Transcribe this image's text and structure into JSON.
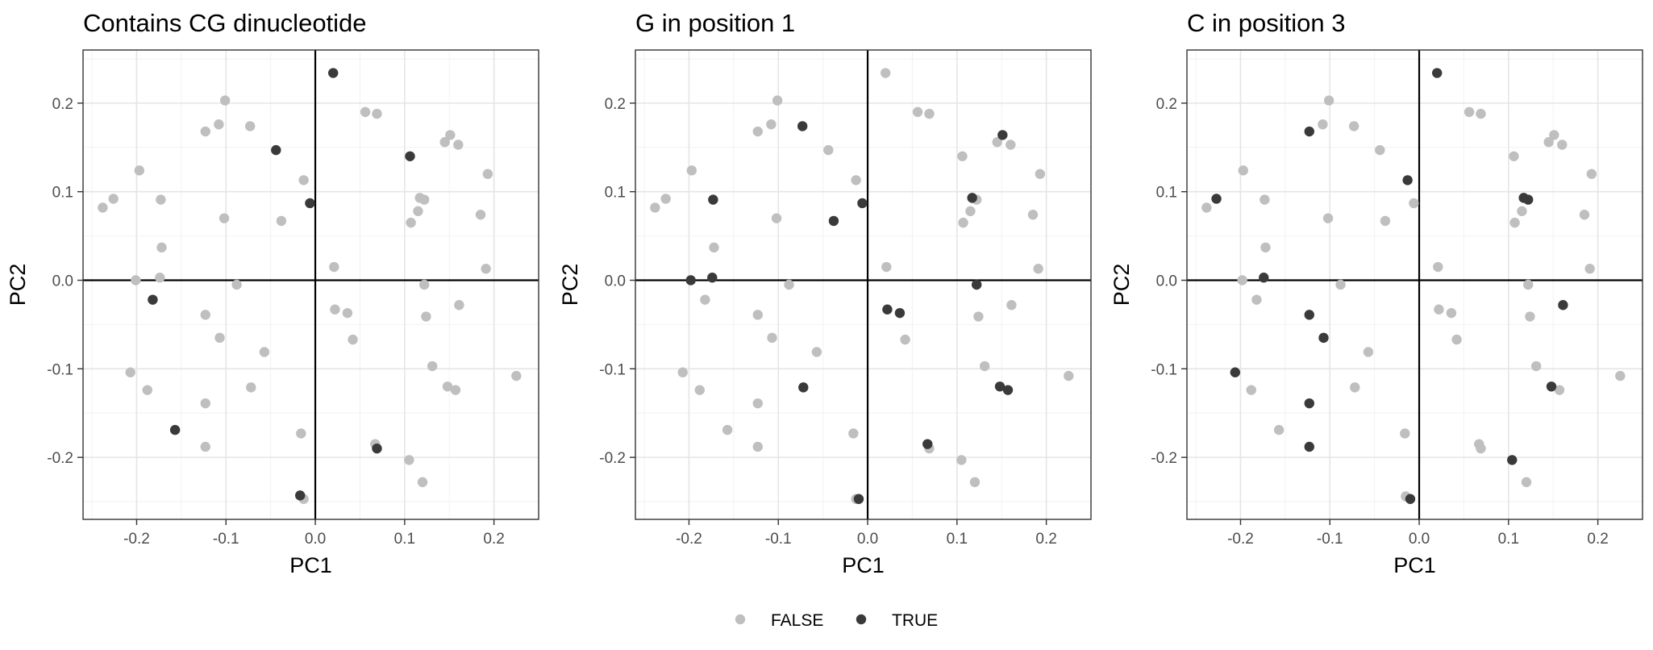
{
  "colors": {
    "FALSE": "#bfbfbf",
    "TRUE": "#3a3a3a",
    "grid_major": "#e5e5e5",
    "grid_minor": "#f2f2f2",
    "panel_border": "#333333",
    "zero_line": "#000000"
  },
  "legend": {
    "position": "bottom",
    "entries": [
      {
        "key": "FALSE",
        "label": "FALSE"
      },
      {
        "key": "TRUE",
        "label": "TRUE"
      }
    ]
  },
  "chart_data": [
    {
      "type": "scatter",
      "title": "Contains CG dinucleotide",
      "xlabel": "PC1",
      "ylabel": "PC2",
      "xlim": [
        -0.26,
        0.25
      ],
      "ylim": [
        -0.27,
        0.26
      ],
      "xticks": [
        -0.2,
        -0.1,
        0.0,
        0.1,
        0.2
      ],
      "xtick_labels": [
        "-0.2",
        "-0.1",
        "0.0",
        "0.1",
        "0.2"
      ],
      "yticks": [
        -0.2,
        -0.1,
        0.0,
        0.1,
        0.2
      ],
      "ytick_labels": [
        "-0.2",
        "-0.1",
        "0.0",
        "0.1",
        "0.2"
      ],
      "grid": true,
      "zero_lines": true,
      "points": [
        [
          -0.238,
          0.082,
          0
        ],
        [
          -0.226,
          0.092,
          0
        ],
        [
          -0.197,
          0.124,
          0
        ],
        [
          -0.173,
          0.091,
          0
        ],
        [
          -0.172,
          0.037,
          0
        ],
        [
          -0.174,
          0.003,
          0
        ],
        [
          -0.201,
          0.0,
          0
        ],
        [
          -0.182,
          -0.022,
          1
        ],
        [
          -0.207,
          -0.104,
          0
        ],
        [
          -0.188,
          -0.124,
          0
        ],
        [
          -0.157,
          -0.169,
          1
        ],
        [
          -0.123,
          -0.188,
          0
        ],
        [
          -0.123,
          -0.139,
          0
        ],
        [
          -0.123,
          -0.039,
          0
        ],
        [
          -0.107,
          -0.065,
          0
        ],
        [
          -0.088,
          -0.005,
          0
        ],
        [
          -0.057,
          -0.081,
          0
        ],
        [
          -0.072,
          -0.121,
          0
        ],
        [
          -0.102,
          0.07,
          0
        ],
        [
          -0.123,
          0.168,
          0
        ],
        [
          -0.108,
          0.176,
          0
        ],
        [
          -0.101,
          0.203,
          0
        ],
        [
          -0.073,
          0.174,
          0
        ],
        [
          -0.044,
          0.147,
          1
        ],
        [
          -0.038,
          0.067,
          0
        ],
        [
          -0.013,
          0.113,
          0
        ],
        [
          -0.006,
          0.087,
          1
        ],
        [
          -0.016,
          -0.173,
          0
        ],
        [
          -0.013,
          -0.247,
          0
        ],
        [
          -0.017,
          -0.243,
          1
        ],
        [
          0.02,
          0.234,
          1
        ],
        [
          0.056,
          0.19,
          0
        ],
        [
          0.069,
          0.188,
          0
        ],
        [
          0.106,
          0.14,
          1
        ],
        [
          0.145,
          0.156,
          0
        ],
        [
          0.151,
          0.164,
          0
        ],
        [
          0.16,
          0.153,
          0
        ],
        [
          0.193,
          0.12,
          0
        ],
        [
          0.185,
          0.074,
          0
        ],
        [
          0.191,
          0.013,
          0
        ],
        [
          0.117,
          0.093,
          0
        ],
        [
          0.122,
          0.091,
          0
        ],
        [
          0.115,
          0.078,
          0
        ],
        [
          0.107,
          0.065,
          0
        ],
        [
          0.021,
          0.015,
          0
        ],
        [
          0.022,
          -0.033,
          0
        ],
        [
          0.036,
          -0.037,
          0
        ],
        [
          0.042,
          -0.067,
          0
        ],
        [
          0.122,
          -0.005,
          0
        ],
        [
          0.124,
          -0.041,
          0
        ],
        [
          0.161,
          -0.028,
          0
        ],
        [
          0.131,
          -0.097,
          0
        ],
        [
          0.148,
          -0.12,
          0
        ],
        [
          0.157,
          -0.124,
          0
        ],
        [
          0.225,
          -0.108,
          0
        ],
        [
          0.067,
          -0.185,
          0
        ],
        [
          0.069,
          -0.19,
          1
        ],
        [
          0.105,
          -0.203,
          0
        ],
        [
          0.12,
          -0.228,
          0
        ]
      ]
    },
    {
      "type": "scatter",
      "title": "G in position 1",
      "xlabel": "PC1",
      "ylabel": "PC2",
      "xlim": [
        -0.26,
        0.25
      ],
      "ylim": [
        -0.27,
        0.26
      ],
      "xticks": [
        -0.2,
        -0.1,
        0.0,
        0.1,
        0.2
      ],
      "xtick_labels": [
        "-0.2",
        "-0.1",
        "0.0",
        "0.1",
        "0.2"
      ],
      "yticks": [
        -0.2,
        -0.1,
        0.0,
        0.1,
        0.2
      ],
      "ytick_labels": [
        "-0.2",
        "-0.1",
        "0.0",
        "0.1",
        "0.2"
      ],
      "grid": true,
      "zero_lines": true,
      "points": [
        [
          -0.238,
          0.082,
          0
        ],
        [
          -0.226,
          0.092,
          0
        ],
        [
          -0.197,
          0.124,
          0
        ],
        [
          -0.173,
          0.091,
          1
        ],
        [
          -0.172,
          0.037,
          0
        ],
        [
          -0.174,
          0.003,
          1
        ],
        [
          -0.198,
          0.0,
          1
        ],
        [
          -0.182,
          -0.022,
          0
        ],
        [
          -0.207,
          -0.104,
          0
        ],
        [
          -0.188,
          -0.124,
          0
        ],
        [
          -0.157,
          -0.169,
          0
        ],
        [
          -0.123,
          -0.188,
          0
        ],
        [
          -0.123,
          -0.139,
          0
        ],
        [
          -0.123,
          -0.039,
          0
        ],
        [
          -0.107,
          -0.065,
          0
        ],
        [
          -0.088,
          -0.005,
          0
        ],
        [
          -0.057,
          -0.081,
          0
        ],
        [
          -0.072,
          -0.121,
          1
        ],
        [
          -0.102,
          0.07,
          0
        ],
        [
          -0.123,
          0.168,
          0
        ],
        [
          -0.108,
          0.176,
          0
        ],
        [
          -0.101,
          0.203,
          0
        ],
        [
          -0.073,
          0.174,
          1
        ],
        [
          -0.044,
          0.147,
          0
        ],
        [
          -0.038,
          0.067,
          1
        ],
        [
          -0.013,
          0.113,
          0
        ],
        [
          -0.006,
          0.087,
          1
        ],
        [
          -0.016,
          -0.173,
          0
        ],
        [
          -0.013,
          -0.247,
          0
        ],
        [
          -0.01,
          -0.247,
          1
        ],
        [
          0.02,
          0.234,
          0
        ],
        [
          0.056,
          0.19,
          0
        ],
        [
          0.069,
          0.188,
          0
        ],
        [
          0.106,
          0.14,
          0
        ],
        [
          0.145,
          0.156,
          0
        ],
        [
          0.151,
          0.164,
          1
        ],
        [
          0.16,
          0.153,
          0
        ],
        [
          0.193,
          0.12,
          0
        ],
        [
          0.185,
          0.074,
          0
        ],
        [
          0.191,
          0.013,
          0
        ],
        [
          0.117,
          0.093,
          1
        ],
        [
          0.122,
          0.091,
          0
        ],
        [
          0.115,
          0.078,
          0
        ],
        [
          0.107,
          0.065,
          0
        ],
        [
          0.021,
          0.015,
          0
        ],
        [
          0.022,
          -0.033,
          1
        ],
        [
          0.036,
          -0.037,
          1
        ],
        [
          0.042,
          -0.067,
          0
        ],
        [
          0.122,
          -0.005,
          1
        ],
        [
          0.124,
          -0.041,
          0
        ],
        [
          0.161,
          -0.028,
          0
        ],
        [
          0.131,
          -0.097,
          0
        ],
        [
          0.148,
          -0.12,
          1
        ],
        [
          0.157,
          -0.124,
          1
        ],
        [
          0.225,
          -0.108,
          0
        ],
        [
          0.069,
          -0.19,
          0
        ],
        [
          0.067,
          -0.185,
          1
        ],
        [
          0.105,
          -0.203,
          0
        ],
        [
          0.12,
          -0.228,
          0
        ]
      ]
    },
    {
      "type": "scatter",
      "title": "C in position 3",
      "xlabel": "PC1",
      "ylabel": "PC2",
      "xlim": [
        -0.26,
        0.25
      ],
      "ylim": [
        -0.27,
        0.26
      ],
      "xticks": [
        -0.2,
        -0.1,
        0.0,
        0.1,
        0.2
      ],
      "xtick_labels": [
        "-0.2",
        "-0.1",
        "0.0",
        "0.1",
        "0.2"
      ],
      "yticks": [
        -0.2,
        -0.1,
        0.0,
        0.1,
        0.2
      ],
      "ytick_labels": [
        "-0.2",
        "-0.1",
        "0.0",
        "0.1",
        "0.2"
      ],
      "grid": true,
      "zero_lines": true,
      "points": [
        [
          -0.238,
          0.082,
          0
        ],
        [
          -0.227,
          0.092,
          1
        ],
        [
          -0.197,
          0.124,
          0
        ],
        [
          -0.173,
          0.091,
          0
        ],
        [
          -0.172,
          0.037,
          0
        ],
        [
          -0.174,
          0.003,
          1
        ],
        [
          -0.198,
          0.0,
          0
        ],
        [
          -0.182,
          -0.022,
          0
        ],
        [
          -0.206,
          -0.104,
          1
        ],
        [
          -0.188,
          -0.124,
          0
        ],
        [
          -0.157,
          -0.169,
          0
        ],
        [
          -0.123,
          -0.188,
          1
        ],
        [
          -0.123,
          -0.139,
          1
        ],
        [
          -0.123,
          -0.039,
          1
        ],
        [
          -0.107,
          -0.065,
          1
        ],
        [
          -0.088,
          -0.005,
          0
        ],
        [
          -0.057,
          -0.081,
          0
        ],
        [
          -0.072,
          -0.121,
          0
        ],
        [
          -0.102,
          0.07,
          0
        ],
        [
          -0.123,
          0.168,
          1
        ],
        [
          -0.108,
          0.176,
          0
        ],
        [
          -0.101,
          0.203,
          0
        ],
        [
          -0.073,
          0.174,
          0
        ],
        [
          -0.044,
          0.147,
          0
        ],
        [
          -0.038,
          0.067,
          0
        ],
        [
          -0.013,
          0.113,
          1
        ],
        [
          -0.006,
          0.087,
          0
        ],
        [
          -0.016,
          -0.173,
          0
        ],
        [
          -0.015,
          -0.244,
          0
        ],
        [
          -0.01,
          -0.247,
          1
        ],
        [
          0.02,
          0.234,
          1
        ],
        [
          0.056,
          0.19,
          0
        ],
        [
          0.069,
          0.188,
          0
        ],
        [
          0.106,
          0.14,
          0
        ],
        [
          0.145,
          0.156,
          0
        ],
        [
          0.151,
          0.164,
          0
        ],
        [
          0.16,
          0.153,
          0
        ],
        [
          0.193,
          0.12,
          0
        ],
        [
          0.185,
          0.074,
          0
        ],
        [
          0.191,
          0.013,
          0
        ],
        [
          0.117,
          0.093,
          1
        ],
        [
          0.122,
          0.091,
          1
        ],
        [
          0.115,
          0.078,
          0
        ],
        [
          0.107,
          0.065,
          0
        ],
        [
          0.021,
          0.015,
          0
        ],
        [
          0.022,
          -0.033,
          0
        ],
        [
          0.036,
          -0.037,
          0
        ],
        [
          0.042,
          -0.067,
          0
        ],
        [
          0.122,
          -0.005,
          0
        ],
        [
          0.124,
          -0.041,
          0
        ],
        [
          0.161,
          -0.028,
          1
        ],
        [
          0.131,
          -0.097,
          0
        ],
        [
          0.148,
          -0.12,
          1
        ],
        [
          0.157,
          -0.124,
          0
        ],
        [
          0.225,
          -0.108,
          0
        ],
        [
          0.067,
          -0.185,
          0
        ],
        [
          0.069,
          -0.19,
          0
        ],
        [
          0.104,
          -0.203,
          1
        ],
        [
          0.12,
          -0.228,
          0
        ]
      ]
    }
  ]
}
